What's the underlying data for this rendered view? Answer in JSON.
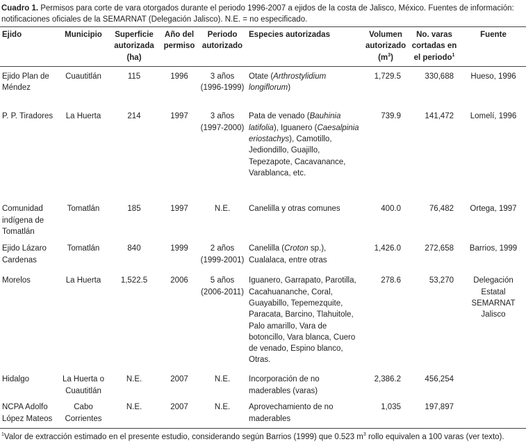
{
  "caption": [
    {
      "text": "Cuadro 1.",
      "bold": true
    },
    {
      "text": " Permisos para corte de vara otorgados durante el periodo 1996-2007 a ejidos de la costa de Jalisco, México. Fuentes de información: notificaciones oficiales de la SEMARNAT (Delegación Jalisco). N.E. = no especificado."
    }
  ],
  "table": {
    "headers": [
      [
        {
          "text": "Ejido"
        }
      ],
      [
        {
          "text": "Municipio"
        }
      ],
      [
        {
          "text": "Superficie autorizada (ha)"
        }
      ],
      [
        {
          "text": "Año del permiso"
        }
      ],
      [
        {
          "text": "Periodo autorizado"
        }
      ],
      [
        {
          "text": "Especies autorizadas"
        }
      ],
      [
        {
          "text": "Volumen autorizado (m"
        },
        {
          "text": "3",
          "sup": true
        },
        {
          "text": ")"
        }
      ],
      [
        {
          "text": "No. varas cortadas en el periodo"
        },
        {
          "text": "1",
          "sup": true
        }
      ],
      [
        {
          "text": "Fuente"
        }
      ]
    ],
    "rows": [
      [
        [
          {
            "text": "Ejido Plan de Méndez"
          }
        ],
        [
          {
            "text": "Cuautitlán"
          }
        ],
        [
          {
            "text": "115"
          }
        ],
        [
          {
            "text": "1996"
          }
        ],
        [
          {
            "text": "3 años (1996-1999)"
          }
        ],
        [
          {
            "text": "Otate ("
          },
          {
            "text": "Arthrostylidium longiflorum",
            "italic": true
          },
          {
            "text": ")"
          }
        ],
        [
          {
            "text": "1,729.5"
          }
        ],
        [
          {
            "text": "330,688"
          }
        ],
        [
          {
            "text": "Hueso, 1996"
          }
        ]
      ],
      [
        [
          {
            "text": "P. P. Tiradores"
          }
        ],
        [
          {
            "text": "La Huerta"
          }
        ],
        [
          {
            "text": "214"
          }
        ],
        [
          {
            "text": "1997"
          }
        ],
        [
          {
            "text": "3 años (1997-2000)"
          }
        ],
        [
          {
            "text": "Pata de venado ("
          },
          {
            "text": "Bauhinia latifolia",
            "italic": true
          },
          {
            "text": "), Iguanero ("
          },
          {
            "text": "Caesalpinia eriostachys",
            "italic": true
          },
          {
            "text": "), Camotillo, Jediondillo, Guajillo, Tepezapote, Cacavanance, Varablanca, etc."
          }
        ],
        [
          {
            "text": "739.9"
          }
        ],
        [
          {
            "text": "141,472"
          }
        ],
        [
          {
            "text": "Lomelí, 1996"
          }
        ]
      ],
      [
        [
          {
            "text": "Comunidad indígena de Tomatlán"
          }
        ],
        [
          {
            "text": "Tomatlán"
          }
        ],
        [
          {
            "text": "185"
          }
        ],
        [
          {
            "text": "1997"
          }
        ],
        [
          {
            "text": "N.E."
          }
        ],
        [
          {
            "text": "Canelilla y otras comunes"
          }
        ],
        [
          {
            "text": "400.0"
          }
        ],
        [
          {
            "text": "76,482"
          }
        ],
        [
          {
            "text": "Ortega, 1997"
          }
        ]
      ],
      [
        [
          {
            "text": "Ejido Lázaro Cardenas"
          }
        ],
        [
          {
            "text": "Tomatlán"
          }
        ],
        [
          {
            "text": "840"
          }
        ],
        [
          {
            "text": "1999"
          }
        ],
        [
          {
            "text": "2 años (1999-2001)"
          }
        ],
        [
          {
            "text": "Canelilla ("
          },
          {
            "text": "Croton",
            "italic": true
          },
          {
            "text": " sp.), Cualalaca, entre otras"
          }
        ],
        [
          {
            "text": "1,426.0"
          }
        ],
        [
          {
            "text": "272,658"
          }
        ],
        [
          {
            "text": "Barrios, 1999"
          }
        ]
      ],
      [
        [
          {
            "text": "Morelos"
          }
        ],
        [
          {
            "text": "La Huerta"
          }
        ],
        [
          {
            "text": "1,522.5"
          }
        ],
        [
          {
            "text": "2006"
          }
        ],
        [
          {
            "text": "5 años (2006-2011)"
          }
        ],
        [
          {
            "text": "Iguanero, Garrapato, Parotilla, Cacahuananche, Coral, Guayabillo, Tepemezquite, Paracata, Barcino, Tlahuitole, Palo amarillo, Vara de botoncillo, Vara blanca, Cuero de venado, Espino blanco, Otras."
          }
        ],
        [
          {
            "text": "278.6"
          }
        ],
        [
          {
            "text": "53,270"
          }
        ],
        [
          {
            "text": "Delegación Estatal SEMARNAT Jalisco"
          }
        ]
      ],
      [
        [
          {
            "text": "Hidalgo"
          }
        ],
        [
          {
            "text": "La Huerta o Cuautitlán"
          }
        ],
        [
          {
            "text": "N.E."
          }
        ],
        [
          {
            "text": "2007"
          }
        ],
        [
          {
            "text": "N.E."
          }
        ],
        [
          {
            "text": "Incorporación de no maderables (varas)"
          }
        ],
        [
          {
            "text": "2,386.2"
          }
        ],
        [
          {
            "text": "456,254"
          }
        ],
        [
          {
            "text": ""
          }
        ]
      ],
      [
        [
          {
            "text": "NCPA Adolfo López Mateos"
          }
        ],
        [
          {
            "text": "Cabo Corrientes"
          }
        ],
        [
          {
            "text": "N.E."
          }
        ],
        [
          {
            "text": "2007"
          }
        ],
        [
          {
            "text": "N.E."
          }
        ],
        [
          {
            "text": "Aprovechamiento de no maderables"
          }
        ],
        [
          {
            "text": "1,035"
          }
        ],
        [
          {
            "text": "197,897"
          }
        ],
        [
          {
            "text": ""
          }
        ]
      ]
    ]
  },
  "footnote": [
    {
      "text": "1",
      "sup": true
    },
    {
      "text": "Valor de extracción estimado en el presente estudio, considerando según Barrios (1999) que 0.523 m"
    },
    {
      "text": "3",
      "sup": true
    },
    {
      "text": " rollo equivalen a 100 varas (ver texto)."
    }
  ]
}
